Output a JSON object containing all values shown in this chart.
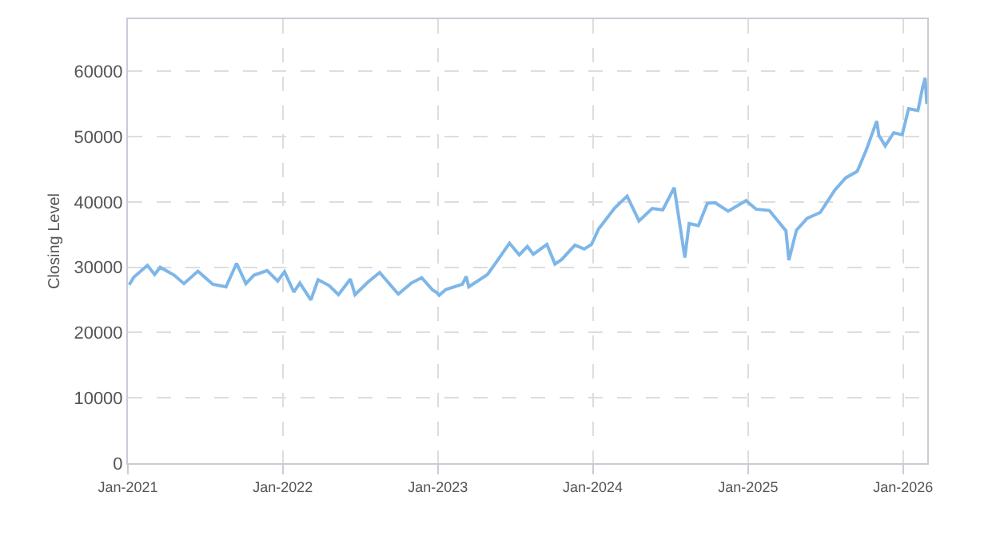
{
  "chart_data": {
    "type": "line",
    "ylabel": "Closing Level",
    "xlim": [
      "2021-01-01",
      "2026-02-27"
    ],
    "ylim": [
      0,
      68000
    ],
    "yticks": [
      0,
      10000,
      20000,
      30000,
      40000,
      50000,
      60000
    ],
    "xticks": [
      {
        "value": "2021-01-01",
        "label": "Jan-2021"
      },
      {
        "value": "2022-01-01",
        "label": "Jan-2022"
      },
      {
        "value": "2023-01-01",
        "label": "Jan-2023"
      },
      {
        "value": "2024-01-01",
        "label": "Jan-2024"
      },
      {
        "value": "2025-01-01",
        "label": "Jan-2025"
      },
      {
        "value": "2026-01-01",
        "label": "Jan-2026"
      }
    ],
    "grid": true,
    "marker": "none",
    "line_style": "solid",
    "series": [
      {
        "color": "#7eb6e8",
        "x": [
          "2021-01-04",
          "2021-01-15",
          "2021-02-16",
          "2021-03-05",
          "2021-03-18",
          "2021-04-20",
          "2021-05-13",
          "2021-06-15",
          "2021-07-20",
          "2021-08-20",
          "2021-09-14",
          "2021-10-06",
          "2021-10-25",
          "2021-11-25",
          "2021-12-20",
          "2021-12-30",
          "2022-01-05",
          "2022-01-27",
          "2022-02-10",
          "2022-03-08",
          "2022-03-25",
          "2022-04-20",
          "2022-05-12",
          "2022-06-09",
          "2022-06-20",
          "2022-07-20",
          "2022-08-17",
          "2022-09-30",
          "2022-10-31",
          "2022-11-24",
          "2022-12-20",
          "2022-12-30",
          "2023-01-04",
          "2023-01-20",
          "2023-02-28",
          "2023-03-09",
          "2023-03-15",
          "2023-04-28",
          "2023-05-19",
          "2023-06-19",
          "2023-07-12",
          "2023-07-31",
          "2023-08-14",
          "2023-09-15",
          "2023-10-04",
          "2023-10-20",
          "2023-11-20",
          "2023-12-12",
          "2023-12-29",
          "2024-01-15",
          "2024-02-22",
          "2024-03-22",
          "2024-04-19",
          "2024-05-20",
          "2024-06-14",
          "2024-07-11",
          "2024-08-05",
          "2024-08-15",
          "2024-09-06",
          "2024-09-27",
          "2024-10-15",
          "2024-11-15",
          "2024-12-27",
          "2025-01-20",
          "2025-02-20",
          "2025-03-31",
          "2025-04-07",
          "2025-04-25",
          "2025-05-20",
          "2025-06-20",
          "2025-07-24",
          "2025-08-19",
          "2025-09-15",
          "2025-10-06",
          "2025-10-31",
          "2025-11-05",
          "2025-11-20",
          "2025-12-10",
          "2025-12-30",
          "2026-01-14",
          "2026-02-05",
          "2026-02-16",
          "2026-02-22",
          "2026-02-26"
        ],
        "values": [
          27300,
          28500,
          30300,
          28900,
          30000,
          28800,
          27500,
          29400,
          27400,
          27000,
          30600,
          27500,
          28800,
          29500,
          27900,
          28800,
          29300,
          26200,
          27600,
          25000,
          28100,
          27200,
          25800,
          28200,
          25800,
          27700,
          29200,
          25900,
          27600,
          28400,
          26500,
          26100,
          25700,
          26600,
          27400,
          28600,
          27000,
          28900,
          30800,
          33700,
          31900,
          33200,
          32000,
          33500,
          30500,
          31200,
          33400,
          32800,
          33500,
          35900,
          39100,
          40900,
          37100,
          39000,
          38800,
          42200,
          31500,
          36700,
          36400,
          39800,
          39900,
          38600,
          40200,
          38900,
          38700,
          35600,
          31100,
          35700,
          37500,
          38400,
          41800,
          43700,
          44700,
          47900,
          52400,
          50200,
          48600,
          50600,
          50300,
          54300,
          54000,
          57500,
          59000,
          55000
        ]
      }
    ]
  }
}
